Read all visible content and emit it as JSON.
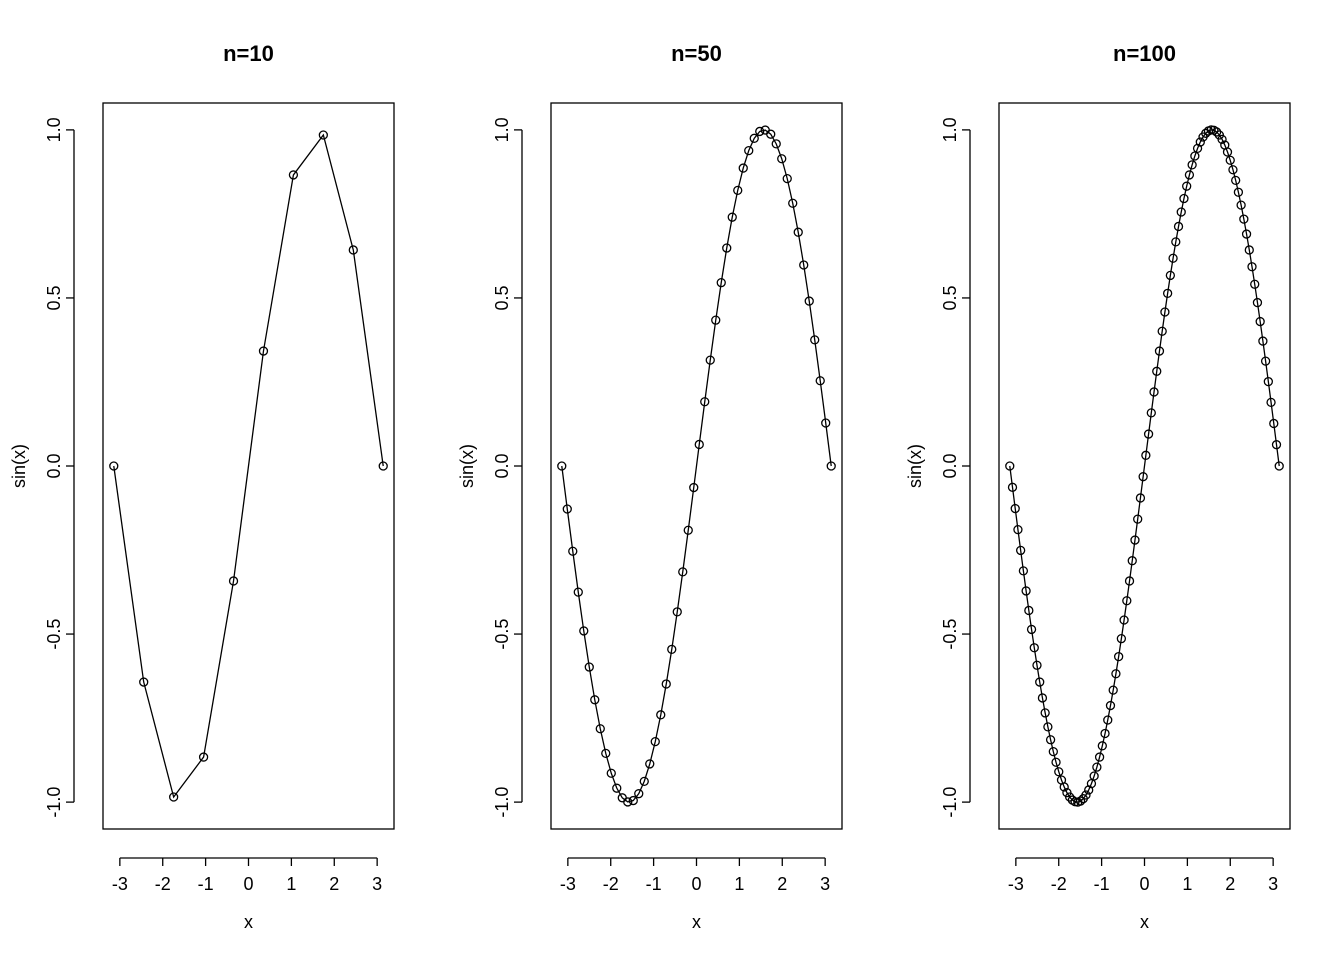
{
  "chart_data": [
    {
      "type": "line",
      "title": "n=10",
      "xlabel": "x",
      "ylabel": "sin(x)",
      "xticks": [
        "-3",
        "-2",
        "-1",
        "0",
        "1",
        "2",
        "3"
      ],
      "yticks": [
        "-1.0",
        "-0.5",
        "0.0",
        "0.5",
        "1.0"
      ],
      "n": 10,
      "x": [
        -3.1416,
        -2.4435,
        -1.7453,
        -1.0472,
        -0.3491,
        0.3491,
        1.0472,
        1.7453,
        2.4435,
        3.1416
      ],
      "y": [
        0.0,
        -0.6428,
        -0.9848,
        -0.866,
        -0.342,
        0.342,
        0.866,
        0.9848,
        0.6428,
        0.0
      ],
      "markers": "open-circle"
    },
    {
      "type": "line",
      "title": "n=50",
      "xlabel": "x",
      "ylabel": "sin(x)",
      "xticks": [
        "-3",
        "-2",
        "-1",
        "0",
        "1",
        "2",
        "3"
      ],
      "yticks": [
        "-1.0",
        "-0.5",
        "0.0",
        "0.5",
        "1.0"
      ],
      "n": 50,
      "x": [
        -3.1416,
        -3.0134,
        -2.8851,
        -2.7569,
        -2.6287,
        -2.5005,
        -2.3722,
        -2.244,
        -2.1158,
        -1.9875,
        -1.8593,
        -1.7311,
        -1.6029,
        -1.4746,
        -1.3464,
        -1.2182,
        -1.0899,
        -0.9617,
        -0.8335,
        -0.7053,
        -0.577,
        -0.4488,
        -0.3206,
        -0.1923,
        -0.0641,
        0.0641,
        0.1923,
        0.3206,
        0.4488,
        0.577,
        0.7053,
        0.8335,
        0.9617,
        1.0899,
        1.2182,
        1.3464,
        1.4746,
        1.6029,
        1.7311,
        1.8593,
        1.9875,
        2.1158,
        2.244,
        2.3722,
        2.5005,
        2.6287,
        2.7569,
        2.8851,
        3.0134,
        3.1416
      ],
      "y": [
        0.0,
        -0.1279,
        -0.2537,
        -0.3753,
        -0.4907,
        -0.5981,
        -0.6956,
        -0.7818,
        -0.855,
        -0.9142,
        -0.9585,
        -0.9872,
        -0.9995,
        -0.9954,
        -0.9749,
        -0.9383,
        -0.8864,
        -0.82,
        -0.7403,
        -0.6485,
        -0.5455,
        -0.4339,
        -0.315,
        -0.1912,
        -0.0641,
        0.0641,
        0.1912,
        0.315,
        0.4339,
        0.5455,
        0.6485,
        0.7403,
        0.82,
        0.8864,
        0.9383,
        0.9749,
        0.9954,
        0.9995,
        0.9872,
        0.9585,
        0.9142,
        0.855,
        0.7818,
        0.6956,
        0.5981,
        0.4907,
        0.3753,
        0.2537,
        0.1279,
        0.0
      ],
      "markers": "open-circle"
    },
    {
      "type": "line",
      "title": "n=100",
      "xlabel": "x",
      "ylabel": "sin(x)",
      "xticks": [
        "-3",
        "-2",
        "-1",
        "0",
        "1",
        "2",
        "3"
      ],
      "yticks": [
        "-1.0",
        "-0.5",
        "0.0",
        "0.5",
        "1.0"
      ],
      "n": 100,
      "x_range": [
        -3.1416,
        3.1416
      ],
      "function": "sin(x), 100 evenly spaced points from -pi to pi",
      "markers": "open-circle"
    }
  ]
}
